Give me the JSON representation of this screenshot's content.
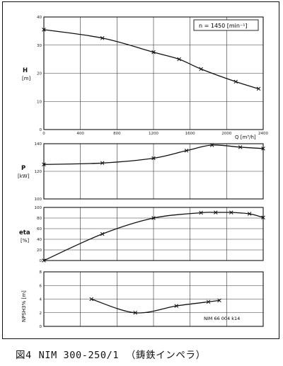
{
  "caption": {
    "fig": "図4",
    "model": "NIM 300-250/1",
    "note": "（鋳鉄インペラ）"
  },
  "chart_data": [
    {
      "type": "line",
      "ylabel": "H",
      "yunit": "[m]",
      "xlabel": "Q [m³/h]",
      "annotation": "n = 1450 [min⁻¹]",
      "xlim": [
        0,
        2400
      ],
      "ylim": [
        0,
        40
      ],
      "xticks": [
        "0",
        "400",
        "800",
        "1200",
        "1600",
        "2000",
        "2400"
      ],
      "yticks": [
        "0",
        "10",
        "20",
        "30",
        "40"
      ],
      "series": [
        {
          "x": [
            0,
            640,
            1200,
            1480,
            1720,
            2100,
            2350
          ],
          "y": [
            35.5,
            32.5,
            27.5,
            25,
            21.5,
            17,
            14.5
          ]
        }
      ]
    },
    {
      "type": "line",
      "ylabel": "P",
      "yunit": "[kW]",
      "xlim": [
        0,
        2400
      ],
      "ylim": [
        100,
        140
      ],
      "yticks": [
        "100",
        "120",
        "140"
      ],
      "series": [
        {
          "x": [
            0,
            640,
            1200,
            1560,
            1840,
            2150,
            2400
          ],
          "y": [
            125,
            126,
            129.5,
            135,
            139,
            137.5,
            136.5
          ]
        }
      ]
    },
    {
      "type": "line",
      "ylabel": "eta",
      "yunit": "[%]",
      "xlim": [
        0,
        2400
      ],
      "ylim": [
        0,
        100
      ],
      "yticks": [
        "0",
        "20",
        "40",
        "60",
        "80",
        "100"
      ],
      "series": [
        {
          "x": [
            0,
            640,
            1200,
            1720,
            1880,
            2050,
            2250,
            2400
          ],
          "y": [
            0,
            50,
            80,
            90,
            90.5,
            90.5,
            88,
            81
          ]
        }
      ]
    },
    {
      "type": "line",
      "ylabel": "NPSH3% [m]",
      "xlim": [
        0,
        2400
      ],
      "ylim": [
        0,
        8
      ],
      "yticks": [
        "0",
        "2",
        "4",
        "6",
        "8"
      ],
      "annotation": "NIM 66  004 k14",
      "series": [
        {
          "x": [
            520,
            1000,
            1450,
            1800,
            1920
          ],
          "y": [
            4,
            2,
            3,
            3.6,
            3.8
          ]
        }
      ]
    }
  ]
}
